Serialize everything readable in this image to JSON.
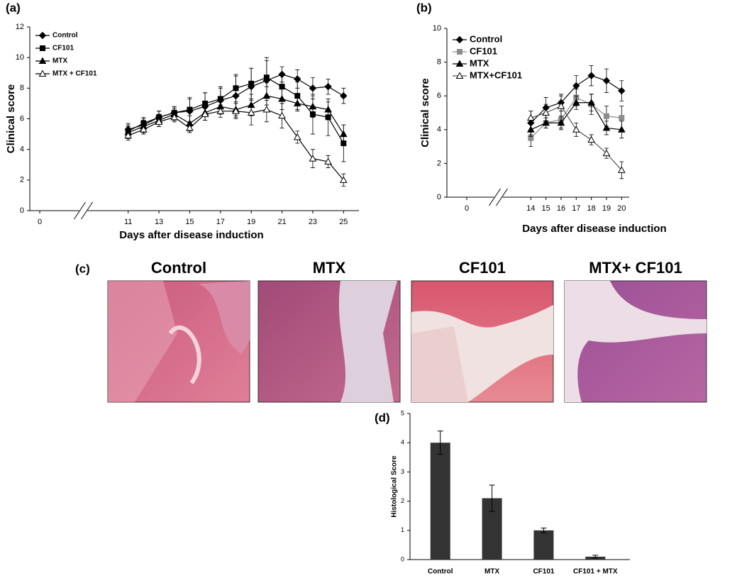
{
  "chart_data": [
    {
      "type": "line",
      "panel": "(a)",
      "y_label": "Clinical score",
      "x_label": "Days after disease induction",
      "x": [
        11,
        12,
        13,
        14,
        15,
        16,
        17,
        18,
        19,
        20,
        21,
        22,
        23,
        24,
        25
      ],
      "xlim": [
        0,
        26
      ],
      "axis_break": [
        0,
        10
      ],
      "xticks": [
        0,
        11,
        13,
        15,
        17,
        19,
        21,
        23,
        25
      ],
      "ylim": [
        0,
        12
      ],
      "yticks": [
        0,
        2,
        4,
        6,
        8,
        10,
        12
      ],
      "series": [
        {
          "name": "Control",
          "color": "#000000",
          "marker": "diamond",
          "values": [
            5.3,
            5.6,
            6.1,
            6.4,
            6.5,
            6.8,
            7.2,
            7.5,
            8.1,
            8.5,
            8.9,
            8.6,
            8.0,
            8.1,
            7.5
          ],
          "errors": [
            0.4,
            0.4,
            0.4,
            0.4,
            0.8,
            0.9,
            0.8,
            1.3,
            1.2,
            1.3,
            0.5,
            0.6,
            0.7,
            0.5,
            0.5
          ]
        },
        {
          "name": "CF101",
          "color": "#000000",
          "marker": "square",
          "values": [
            5.2,
            5.7,
            6.1,
            6.4,
            6.6,
            7.0,
            7.3,
            8.0,
            8.3,
            8.7,
            8.1,
            7.5,
            6.3,
            6.1,
            4.4
          ],
          "errors": [
            0.4,
            0.4,
            0.4,
            0.4,
            0.8,
            0.7,
            0.8,
            0.9,
            1.0,
            1.3,
            0.8,
            0.9,
            1.3,
            1.2,
            1.2
          ]
        },
        {
          "name": "MTX",
          "color": "#000000",
          "marker": "triangle",
          "values": [
            5.1,
            5.5,
            5.9,
            6.3,
            5.7,
            6.4,
            6.8,
            6.6,
            6.9,
            7.5,
            7.3,
            7.0,
            6.8,
            6.6,
            5.0
          ],
          "errors": [
            0.4,
            0.4,
            0.4,
            0.4,
            0.5,
            0.5,
            0.5,
            0.5,
            0.7,
            0.6,
            0.7,
            0.5,
            0.7,
            0.5,
            0.6
          ]
        },
        {
          "name": "MTX  + CF101",
          "color": "#000000",
          "marker": "triangle-open",
          "values": [
            4.9,
            5.3,
            5.8,
            6.1,
            5.4,
            6.3,
            6.5,
            6.5,
            6.4,
            6.6,
            6.2,
            4.8,
            3.4,
            3.2,
            2.0
          ],
          "errors": [
            0.3,
            0.3,
            0.3,
            0.3,
            0.3,
            0.4,
            0.4,
            0.5,
            0.8,
            0.8,
            0.8,
            0.4,
            0.6,
            0.4,
            0.4
          ]
        }
      ]
    },
    {
      "type": "line",
      "panel": "(b)",
      "y_label": "Clinical score",
      "x_label": "Days after disease induction",
      "x": [
        14,
        15,
        16,
        17,
        18,
        19,
        20
      ],
      "xlim": [
        0,
        20.5
      ],
      "axis_break": [
        0,
        13
      ],
      "xticks": [
        0,
        14,
        15,
        16,
        17,
        18,
        19,
        20
      ],
      "ylim": [
        0,
        10
      ],
      "yticks": [
        0,
        2,
        4,
        6,
        8,
        10
      ],
      "series": [
        {
          "name": "Control",
          "color": "#000000",
          "marker": "diamond",
          "values": [
            4.4,
            5.3,
            5.6,
            6.6,
            7.2,
            6.9,
            6.3
          ],
          "errors": [
            0.7,
            0.6,
            0.5,
            0.6,
            0.6,
            0.7,
            0.6
          ]
        },
        {
          "name": "CF101",
          "color": "#8c8c8c",
          "marker": "square",
          "values": [
            3.5,
            4.4,
            4.6,
            5.9,
            5.5,
            4.8,
            4.7
          ],
          "errors": [
            0.5,
            0.3,
            0.5,
            0.5,
            0.6,
            0.6,
            0.7
          ]
        },
        {
          "name": "MTX",
          "color": "#000000",
          "marker": "triangle",
          "values": [
            4.0,
            4.4,
            4.4,
            5.6,
            5.6,
            4.1,
            4.0
          ],
          "errors": [
            0.4,
            0.3,
            0.4,
            0.4,
            0.5,
            0.4,
            0.5
          ]
        },
        {
          "name": "MTX+CF101",
          "color": "#555555",
          "marker": "triangle-open",
          "values": [
            4.7,
            5.0,
            5.4,
            4.0,
            3.4,
            2.6,
            1.6
          ],
          "errors": [
            0.4,
            0.5,
            0.6,
            0.4,
            0.3,
            0.3,
            0.5
          ]
        }
      ]
    },
    {
      "type": "bar",
      "panel": "(d)",
      "y_label": "Histological Score",
      "categories": [
        "Control",
        "MTX",
        "CF101",
        "CF101 + MTX"
      ],
      "values": [
        4.0,
        2.1,
        1.0,
        0.1
      ],
      "errors": [
        0.4,
        0.45,
        0.08,
        0.05
      ],
      "color": "#333333",
      "ylim": [
        0,
        5
      ],
      "yticks": [
        0,
        1,
        2,
        3,
        4,
        5
      ]
    }
  ],
  "micrographs": {
    "panel": "(c)",
    "titles": [
      "Control",
      "MTX",
      "CF101",
      "MTX+ CF101"
    ]
  }
}
